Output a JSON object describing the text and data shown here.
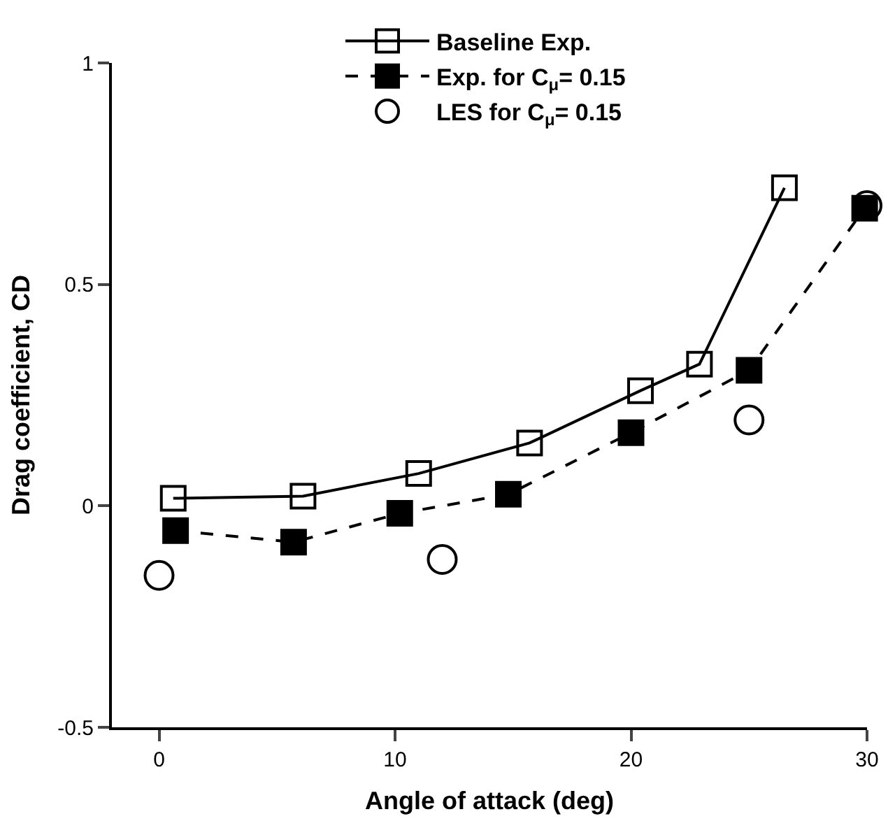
{
  "chart_data": {
    "type": "line",
    "xlabel": "Angle of attack (deg)",
    "ylabel": "Drag coefficient, CD",
    "xlim": [
      -2,
      30
    ],
    "xticks": [
      0,
      10,
      20,
      30
    ],
    "ylim": [
      -0.5,
      1
    ],
    "yticks": [
      -0.5,
      0,
      0.5,
      1
    ],
    "legend": "top",
    "series": [
      {
        "name": "Baseline Exp.",
        "color": "#000000",
        "marker": "square-open",
        "line_style": "solid",
        "x": [
          0.6,
          6.1,
          11.0,
          15.7,
          20.4,
          22.9,
          26.5
        ],
        "values": [
          0.017,
          0.022,
          0.073,
          0.142,
          0.26,
          0.32,
          0.718
        ]
      },
      {
        "name": "Exp. for C$_{μ}$= 0.15",
        "color": "#000000",
        "marker": "square",
        "line_style": "dashed",
        "x": [
          0.7,
          5.7,
          10.2,
          14.8,
          20.0,
          25.0,
          29.9
        ],
        "values": [
          -0.056,
          -0.082,
          -0.017,
          0.026,
          0.165,
          0.306,
          0.672
        ]
      },
      {
        "name": "LES for C$_{μ}$= 0.15",
        "color": "#000000",
        "type": "scatter",
        "marker": "circle-open",
        "x": [
          0,
          12.0,
          25.0,
          30.0
        ],
        "values": [
          -0.157,
          -0.121,
          0.194,
          0.678
        ]
      }
    ]
  }
}
